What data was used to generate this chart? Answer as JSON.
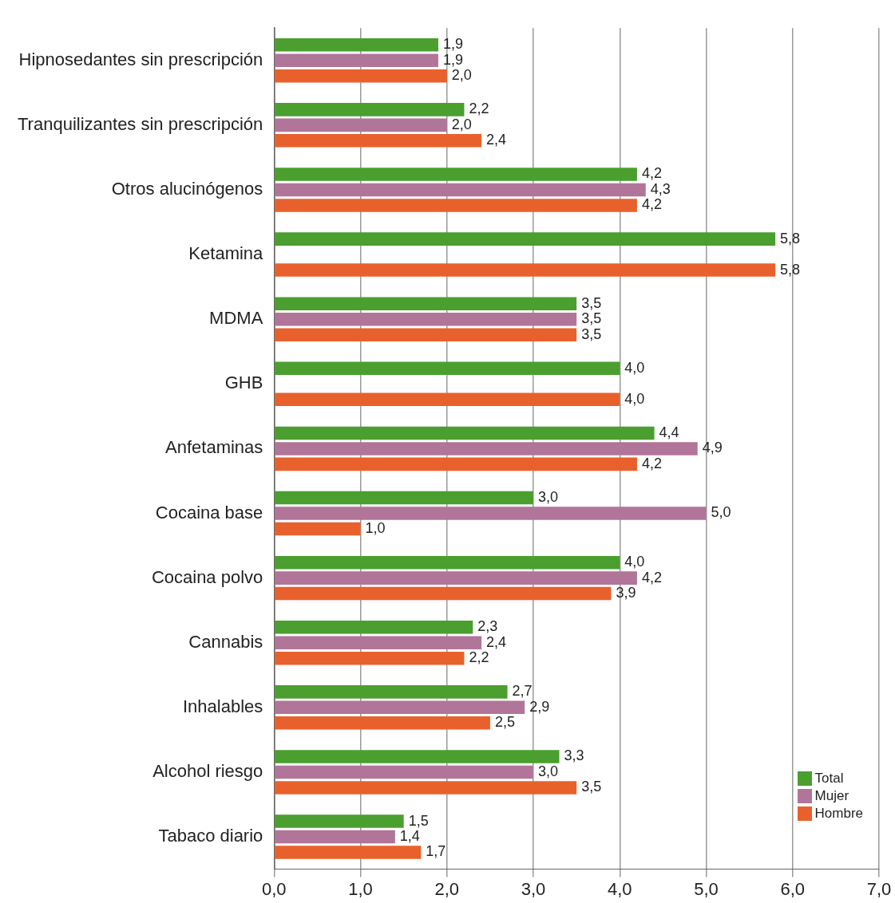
{
  "chart_data": {
    "type": "bar",
    "orientation": "horizontal",
    "categories": [
      "Hipnosedantes sin prescripción",
      "Tranquilizantes sin prescripción",
      "Otros alucinógenos",
      "Ketamina",
      "MDMA",
      "GHB",
      "Anfetaminas",
      "Cocaina base",
      "Cocaina polvo",
      "Cannabis",
      "Inhalables",
      "Alcohol riesgo",
      "Tabaco diario"
    ],
    "series": [
      {
        "name": "Total",
        "color": "#4a9f2f",
        "values": [
          1.9,
          2.2,
          4.2,
          5.8,
          3.5,
          4.0,
          4.4,
          3.0,
          4.0,
          2.3,
          2.7,
          3.3,
          1.5
        ],
        "value_labels": [
          "1,9",
          "2,2",
          "4,2",
          "5,8",
          "3,5",
          "4,0",
          "4,4",
          "3,0",
          "4,0",
          "2,3",
          "2,7",
          "3,3",
          "1,5"
        ]
      },
      {
        "name": "Mujer",
        "color": "#b07599",
        "values": [
          1.9,
          2.0,
          4.3,
          null,
          3.5,
          null,
          4.9,
          5.0,
          4.2,
          2.4,
          2.9,
          3.0,
          1.4
        ],
        "value_labels": [
          "1,9",
          "2,0",
          "4,3",
          null,
          "3,5",
          null,
          "4,9",
          "5,0",
          "4,2",
          "2,4",
          "2,9",
          "3,0",
          "1,4"
        ]
      },
      {
        "name": "Hombre",
        "color": "#e8612c",
        "values": [
          2.0,
          2.4,
          4.2,
          5.8,
          3.5,
          4.0,
          4.2,
          1.0,
          3.9,
          2.2,
          2.5,
          3.5,
          1.7
        ],
        "value_labels": [
          "2,0",
          "2,4",
          "4,2",
          "5,8",
          "3,5",
          "4,0",
          "4,2",
          "1,0",
          "3,9",
          "2,2",
          "2,5",
          "3,5",
          "1,7"
        ]
      }
    ],
    "xlim": [
      0,
      7
    ],
    "xticks": [
      {
        "value": 0,
        "label": "0,0"
      },
      {
        "value": 1,
        "label": "1,0"
      },
      {
        "value": 2,
        "label": "2,0"
      },
      {
        "value": 3,
        "label": "3,0"
      },
      {
        "value": 4,
        "label": "4,0"
      },
      {
        "value": 5,
        "label": "5,0"
      },
      {
        "value": 6,
        "label": "6,0"
      },
      {
        "value": 7,
        "label": "7,0"
      }
    ],
    "grid": "x",
    "legend": "bottom right"
  }
}
